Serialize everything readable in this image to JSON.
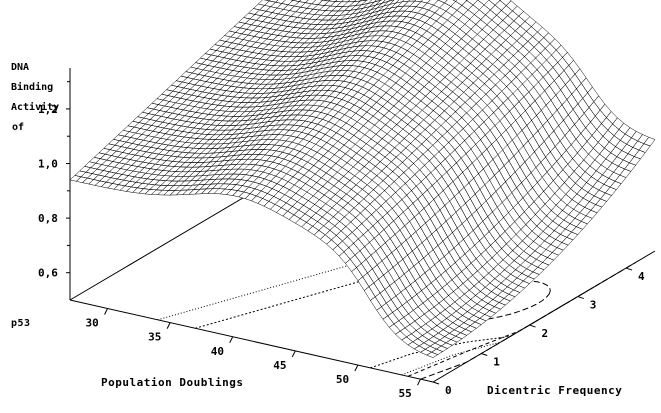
{
  "chart_data": {
    "type": "surface-3d",
    "title": "",
    "xlabel": "Population Doublings",
    "ylabel": "Dicentric Frequency",
    "zlabel_words": [
      "DNA",
      "Binding",
      "Activity",
      "of",
      "p53"
    ],
    "x_ticks": [
      "30",
      "35",
      "40",
      "45",
      "50",
      "55"
    ],
    "y_ticks": [
      "0",
      "1",
      "2",
      "3",
      "4"
    ],
    "z_ticks": [
      "0,6",
      "0,8",
      "1,0",
      "1,2"
    ],
    "xlim": [
      27,
      56
    ],
    "ylim": [
      0,
      4.6
    ],
    "zlim": [
      0.5,
      1.35
    ],
    "grid": false,
    "surface_colors": {
      "mesh": "#000000",
      "fill": "#ffffff"
    },
    "surface_points": [
      {
        "x": 27,
        "y": 0,
        "z": 0.94
      },
      {
        "x": 27,
        "y": 4.6,
        "z": 1.24
      },
      {
        "x": 38,
        "y": 1,
        "z": 1.08
      },
      {
        "x": 44,
        "y": 4.6,
        "z": 1.35
      },
      {
        "x": 50,
        "y": 0,
        "z": 1.0
      },
      {
        "x": 53,
        "y": 0.5,
        "z": 0.98
      },
      {
        "x": 56,
        "y": 2,
        "z": 0.6
      },
      {
        "x": 56,
        "y": 3.2,
        "z": 0.62
      },
      {
        "x": 56,
        "y": 4.6,
        "z": 0.9
      }
    ]
  }
}
